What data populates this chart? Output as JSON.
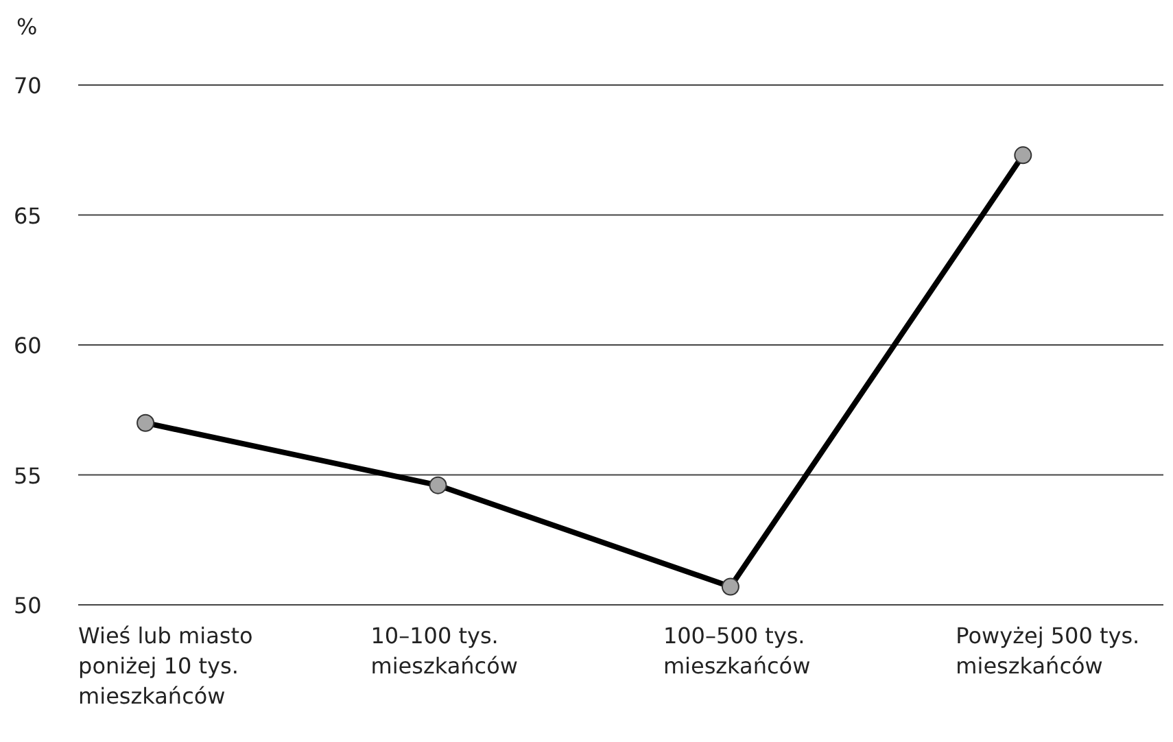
{
  "chart_data": {
    "type": "line",
    "ylabel": "%",
    "categories": [
      "Wieś lub miasto poniżej 10 tys. mieszkańców",
      "10–100 tys. mieszkańców",
      "100–500 tys. mieszkańców",
      "Powyżej 500 tys. mieszkańców"
    ],
    "series": [
      {
        "color": "#000000",
        "values": [
          57.0,
          54.6,
          50.7,
          67.3
        ]
      }
    ],
    "ylim": [
      50,
      70
    ],
    "yticks": [
      50,
      55,
      60,
      65,
      70
    ],
    "grid": "y",
    "legend": false,
    "marker": "circle",
    "line_style": "solid"
  }
}
